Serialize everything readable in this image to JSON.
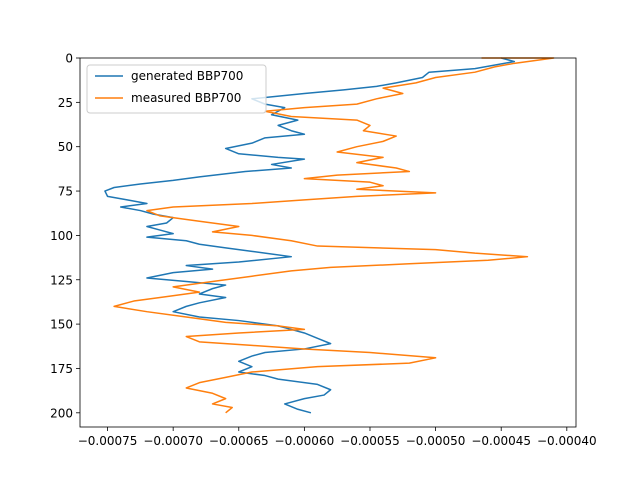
{
  "chart_data": {
    "type": "line",
    "xlim": [
      -0.000771,
      -0.000393
    ],
    "ylim": [
      0,
      208
    ],
    "y_inverted": true,
    "grid": false,
    "legend_position": "top-left",
    "x_ticks": [
      -0.00075,
      -0.0007,
      -0.00065,
      -0.0006,
      -0.00055,
      -0.0005,
      -0.00045,
      -0.0004
    ],
    "x_tick_labels": [
      "−0.00075",
      "−0.00070",
      "−0.00065",
      "−0.00060",
      "−0.00055",
      "−0.00050",
      "−0.00045",
      "−0.00040"
    ],
    "y_ticks": [
      0,
      25,
      50,
      75,
      100,
      125,
      150,
      175,
      200
    ],
    "y_tick_labels": [
      "0",
      "25",
      "50",
      "75",
      "100",
      "125",
      "150",
      "175",
      "200"
    ],
    "series": [
      {
        "name": "generated BBP700",
        "color": "#1f77b4",
        "points": [
          [
            -0.00045,
            0
          ],
          [
            -0.00044,
            2
          ],
          [
            -0.00047,
            6
          ],
          [
            -0.000505,
            8
          ],
          [
            -0.00051,
            11
          ],
          [
            -0.00053,
            14
          ],
          [
            -0.000545,
            16
          ],
          [
            -0.00057,
            18
          ],
          [
            -0.0006,
            20
          ],
          [
            -0.00064,
            23
          ],
          [
            -0.00063,
            26
          ],
          [
            -0.000615,
            28
          ],
          [
            -0.000625,
            32
          ],
          [
            -0.000605,
            35
          ],
          [
            -0.00062,
            38
          ],
          [
            -0.00061,
            41
          ],
          [
            -0.0006,
            43
          ],
          [
            -0.00063,
            45
          ],
          [
            -0.00064,
            48
          ],
          [
            -0.00066,
            51
          ],
          [
            -0.00065,
            54
          ],
          [
            -0.00062,
            56
          ],
          [
            -0.0006,
            57
          ],
          [
            -0.000625,
            60
          ],
          [
            -0.00061,
            62
          ],
          [
            -0.000645,
            64
          ],
          [
            -0.00068,
            67
          ],
          [
            -0.0007,
            69
          ],
          [
            -0.000725,
            71
          ],
          [
            -0.000745,
            73
          ],
          [
            -0.000752,
            75
          ],
          [
            -0.00075,
            78
          ],
          [
            -0.000735,
            80
          ],
          [
            -0.00072,
            82
          ],
          [
            -0.00074,
            84
          ],
          [
            -0.000725,
            86
          ],
          [
            -0.000715,
            88
          ],
          [
            -0.0007,
            90
          ],
          [
            -0.000705,
            93
          ],
          [
            -0.00072,
            95
          ],
          [
            -0.00071,
            97
          ],
          [
            -0.0007,
            99
          ],
          [
            -0.00072,
            101
          ],
          [
            -0.00069,
            103
          ],
          [
            -0.00068,
            105
          ],
          [
            -0.00066,
            107
          ],
          [
            -0.00064,
            109
          ],
          [
            -0.00061,
            112
          ],
          [
            -0.00065,
            115
          ],
          [
            -0.00069,
            117
          ],
          [
            -0.00067,
            119
          ],
          [
            -0.0007,
            121
          ],
          [
            -0.00072,
            124
          ],
          [
            -0.00069,
            126
          ],
          [
            -0.00066,
            128
          ],
          [
            -0.00067,
            130
          ],
          [
            -0.00068,
            133
          ],
          [
            -0.00066,
            135
          ],
          [
            -0.00068,
            138
          ],
          [
            -0.00069,
            140
          ],
          [
            -0.0007,
            143
          ],
          [
            -0.00068,
            146
          ],
          [
            -0.00065,
            148
          ],
          [
            -0.00062,
            151
          ],
          [
            -0.00061,
            153
          ],
          [
            -0.0006,
            155
          ],
          [
            -0.00059,
            158
          ],
          [
            -0.00058,
            161
          ],
          [
            -0.0006,
            164
          ],
          [
            -0.00063,
            166
          ],
          [
            -0.00064,
            168
          ],
          [
            -0.00065,
            171
          ],
          [
            -0.00064,
            174
          ],
          [
            -0.00065,
            177
          ],
          [
            -0.00063,
            179
          ],
          [
            -0.00062,
            181
          ],
          [
            -0.00059,
            184
          ],
          [
            -0.00058,
            187
          ],
          [
            -0.000585,
            190
          ],
          [
            -0.0006,
            192
          ],
          [
            -0.000615,
            195
          ],
          [
            -0.000605,
            198
          ],
          [
            -0.000595,
            200
          ]
        ]
      },
      {
        "name": "measured BBP700",
        "color": "#ff7f0e",
        "points": [
          [
            -0.000465,
            0
          ],
          [
            -0.00041,
            0
          ],
          [
            -0.00044,
            3
          ],
          [
            -0.000455,
            5
          ],
          [
            -0.00047,
            8
          ],
          [
            -0.0005,
            11
          ],
          [
            -0.000515,
            14
          ],
          [
            -0.00054,
            17
          ],
          [
            -0.000525,
            20
          ],
          [
            -0.000545,
            23
          ],
          [
            -0.00056,
            26
          ],
          [
            -0.0006,
            28
          ],
          [
            -0.00063,
            30
          ],
          [
            -0.00061,
            33
          ],
          [
            -0.00056,
            35
          ],
          [
            -0.00055,
            38
          ],
          [
            -0.000555,
            41
          ],
          [
            -0.00053,
            44
          ],
          [
            -0.00054,
            47
          ],
          [
            -0.00056,
            50
          ],
          [
            -0.000575,
            53
          ],
          [
            -0.00054,
            56
          ],
          [
            -0.00056,
            59
          ],
          [
            -0.00053,
            62
          ],
          [
            -0.00052,
            64
          ],
          [
            -0.000575,
            66
          ],
          [
            -0.0006,
            68
          ],
          [
            -0.00055,
            70
          ],
          [
            -0.00054,
            72
          ],
          [
            -0.00056,
            74
          ],
          [
            -0.0005,
            76
          ],
          [
            -0.00056,
            78
          ],
          [
            -0.0006,
            80
          ],
          [
            -0.00064,
            82
          ],
          [
            -0.0007,
            84
          ],
          [
            -0.00072,
            86
          ],
          [
            -0.00071,
            89
          ],
          [
            -0.00068,
            92
          ],
          [
            -0.00065,
            95
          ],
          [
            -0.00067,
            98
          ],
          [
            -0.00064,
            100
          ],
          [
            -0.00061,
            103
          ],
          [
            -0.00059,
            106
          ],
          [
            -0.0005,
            108
          ],
          [
            -0.00047,
            110
          ],
          [
            -0.00043,
            112
          ],
          [
            -0.00046,
            114
          ],
          [
            -0.00052,
            116
          ],
          [
            -0.00058,
            118
          ],
          [
            -0.00061,
            120
          ],
          [
            -0.00064,
            123
          ],
          [
            -0.00067,
            126
          ],
          [
            -0.0007,
            129
          ],
          [
            -0.00068,
            132
          ],
          [
            -0.00071,
            135
          ],
          [
            -0.00073,
            137
          ],
          [
            -0.000745,
            140
          ],
          [
            -0.00072,
            143
          ],
          [
            -0.00069,
            146
          ],
          [
            -0.00066,
            149
          ],
          [
            -0.00062,
            151
          ],
          [
            -0.0006,
            153
          ],
          [
            -0.00065,
            155
          ],
          [
            -0.00069,
            157
          ],
          [
            -0.00068,
            160
          ],
          [
            -0.00064,
            162
          ],
          [
            -0.0006,
            164
          ],
          [
            -0.00055,
            166
          ],
          [
            -0.0005,
            169
          ],
          [
            -0.00052,
            172
          ],
          [
            -0.00059,
            174
          ],
          [
            -0.00064,
            177
          ],
          [
            -0.00066,
            180
          ],
          [
            -0.00068,
            183
          ],
          [
            -0.00069,
            186
          ],
          [
            -0.00067,
            189
          ],
          [
            -0.00066,
            192
          ],
          [
            -0.00067,
            195
          ],
          [
            -0.000655,
            197
          ],
          [
            -0.00066,
            200
          ]
        ]
      }
    ]
  }
}
